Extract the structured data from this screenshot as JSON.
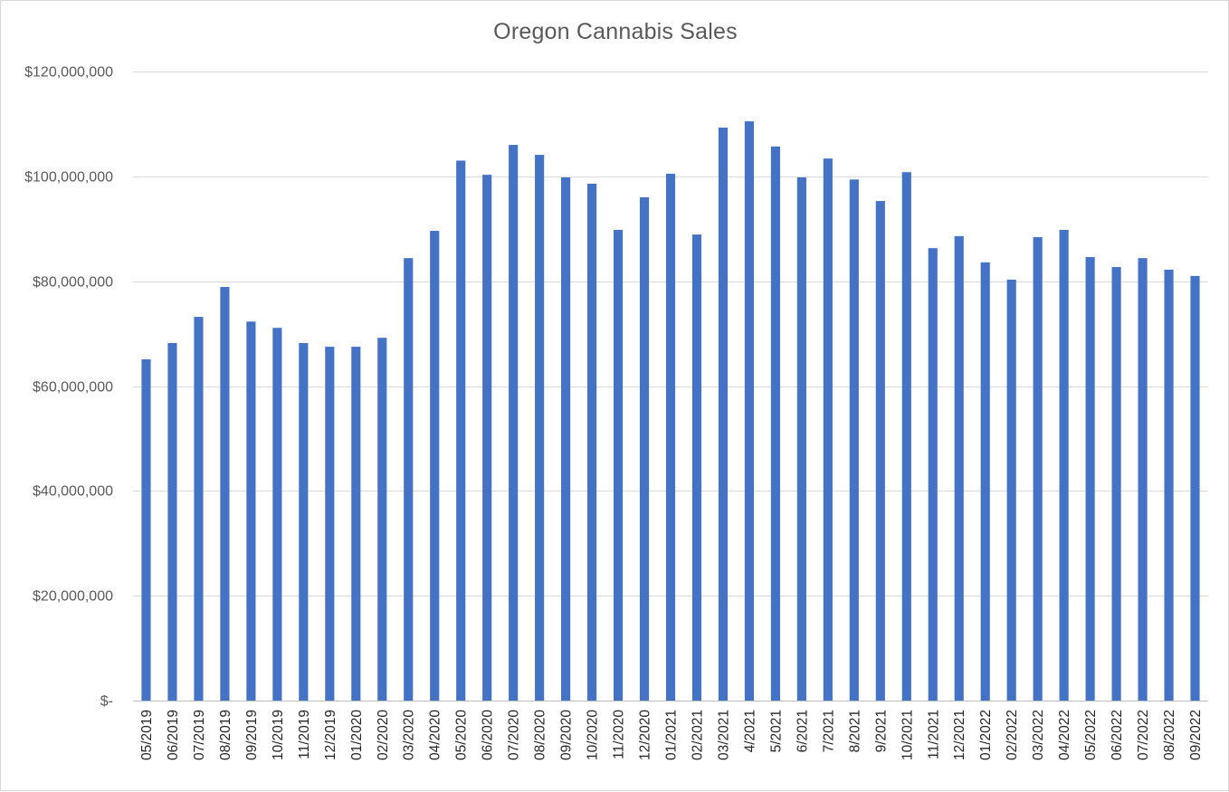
{
  "chart_data": {
    "type": "bar",
    "title": "Oregon Cannabis Sales",
    "xlabel": "",
    "ylabel": "",
    "ylim": [
      0,
      120000000
    ],
    "yticks": [
      0,
      20000000,
      40000000,
      60000000,
      80000000,
      100000000,
      120000000
    ],
    "ytick_labels": [
      "$-",
      "$20,000,000",
      "$40,000,000",
      "$60,000,000",
      "$80,000,000",
      "$100,000,000",
      "$120,000,000"
    ],
    "grid": true,
    "legend": "none",
    "bar_color": "#4472c4",
    "categories": [
      "05/2019",
      "06/2019",
      "07/2019",
      "08/2019",
      "09/2019",
      "10/2019",
      "11/2019",
      "12/2019",
      "01/2020",
      "02/2020",
      "03/2020",
      "04/2020",
      "05/2020",
      "06/2020",
      "07/2020",
      "08/2020",
      "09/2020",
      "10/2020",
      "11/2020",
      "12/2020",
      "01/2021",
      "02/2021",
      "03/2021",
      "4/2021",
      "5/2021",
      "6/2021",
      "7/2021",
      "8/2021",
      "9/2021",
      "10/2021",
      "11/2021",
      "12/2021",
      "01/2022",
      "02/2022",
      "03/2022",
      "04/2022",
      "05/2022",
      "06/2022",
      "07/2022",
      "08/2022",
      "09/2022"
    ],
    "values": [
      65100000,
      68200000,
      73200000,
      78900000,
      72300000,
      71100000,
      68200000,
      67500000,
      67500000,
      69200000,
      84400000,
      89600000,
      103000000,
      100300000,
      106000000,
      104100000,
      99800000,
      98600000,
      89800000,
      96000000,
      100500000,
      88900000,
      109300000,
      110500000,
      105700000,
      99800000,
      103400000,
      99400000,
      95300000,
      100800000,
      86300000,
      88600000,
      83600000,
      80300000,
      88400000,
      89800000,
      84600000,
      82700000,
      84400000,
      82200000,
      81000000
    ]
  }
}
